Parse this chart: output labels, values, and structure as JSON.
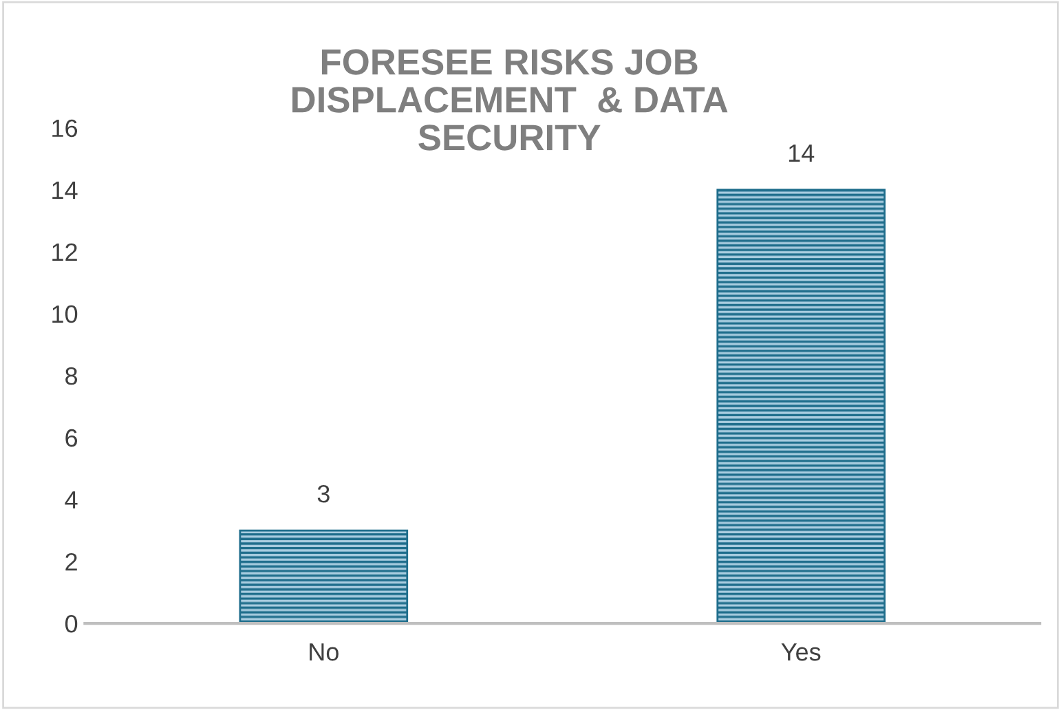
{
  "chart_data": {
    "type": "bar",
    "title": "FORESEE RISKS JOB\nDISPLACEMENT  & DATA\nSECURITY",
    "categories": [
      "No",
      "Yes"
    ],
    "values": [
      3,
      14
    ],
    "color": "#1f6e8c",
    "ylim": [
      0,
      16
    ],
    "yticks": [
      0,
      2,
      4,
      6,
      8,
      10,
      12,
      14,
      16
    ],
    "grid": false,
    "data_labels": true
  }
}
